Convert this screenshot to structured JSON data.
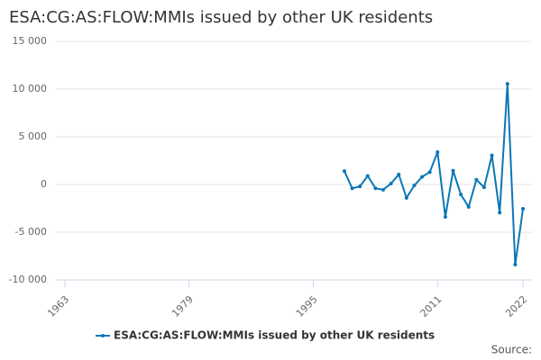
{
  "chart_data": {
    "type": "line",
    "title": "ESA:CG:AS:FLOW:MMIs issued by other UK residents",
    "x": [
      1999,
      2000,
      2001,
      2002,
      2003,
      2004,
      2005,
      2006,
      2007,
      2008,
      2009,
      2010,
      2011,
      2012,
      2013,
      2014,
      2015,
      2016,
      2017,
      2018,
      2019,
      2020,
      2021,
      2022
    ],
    "series": [
      {
        "name": "ESA:CG:AS:FLOW:MMIs issued by other UK residents",
        "color": "#0a77b6",
        "values": [
          1400,
          -400,
          -200,
          900,
          -400,
          -550,
          100,
          1050,
          -1400,
          -100,
          800,
          1300,
          3400,
          -3400,
          1450,
          -1050,
          -2350,
          500,
          -300,
          3050,
          -2950,
          10550,
          -8400,
          -2550
        ]
      }
    ],
    "xlim": [
      1963,
      2022
    ],
    "xticks": [
      1963,
      1979,
      1995,
      2011,
      2022
    ],
    "ylim": [
      -10000,
      15000
    ],
    "yticks": [
      {
        "value": -10000,
        "label": "-10 000"
      },
      {
        "value": -5000,
        "label": "-5 000"
      },
      0,
      {
        "value": 5000,
        "label": "5 000"
      },
      {
        "value": 10000,
        "label": "10 000"
      },
      {
        "value": 15000,
        "label": "15 000"
      }
    ],
    "grid": true,
    "legend": "bottom",
    "source": "Source:"
  }
}
